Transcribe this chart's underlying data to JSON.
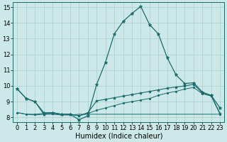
{
  "xlabel": "Humidex (Indice chaleur)",
  "xlim": [
    -0.5,
    23.5
  ],
  "ylim": [
    7.7,
    15.3
  ],
  "yticks": [
    8,
    9,
    10,
    11,
    12,
    13,
    14,
    15
  ],
  "xticks": [
    0,
    1,
    2,
    3,
    4,
    5,
    6,
    7,
    8,
    9,
    10,
    11,
    12,
    13,
    14,
    15,
    16,
    17,
    18,
    19,
    20,
    21,
    22,
    23
  ],
  "bg_color": "#cce8e8",
  "grid_color": "#aacece",
  "line_color": "#1a6b6b",
  "line1_x": [
    0,
    1,
    2,
    3,
    4,
    5,
    6,
    7,
    8,
    9,
    10,
    11,
    12,
    13,
    14,
    15,
    16,
    17,
    18,
    19,
    20,
    21,
    22,
    23
  ],
  "line1_y": [
    9.8,
    9.2,
    9.0,
    8.2,
    8.3,
    8.2,
    8.2,
    7.85,
    8.1,
    10.1,
    11.5,
    13.3,
    14.1,
    14.6,
    15.05,
    13.9,
    13.3,
    11.8,
    10.7,
    10.15,
    10.2,
    9.6,
    9.4,
    8.6
  ],
  "line2_x": [
    0,
    1,
    2,
    3,
    4,
    5,
    6,
    7,
    8,
    9,
    10,
    11,
    12,
    13,
    14,
    15,
    16,
    17,
    18,
    19,
    20,
    21,
    22,
    23
  ],
  "line2_y": [
    9.8,
    9.2,
    9.0,
    8.3,
    8.3,
    8.2,
    8.2,
    8.1,
    8.3,
    9.05,
    9.15,
    9.25,
    9.35,
    9.45,
    9.55,
    9.65,
    9.75,
    9.85,
    9.93,
    10.0,
    10.1,
    9.55,
    9.4,
    8.25
  ],
  "line3_x": [
    0,
    1,
    2,
    3,
    4,
    5,
    6,
    7,
    8,
    9,
    10,
    11,
    12,
    13,
    14,
    15,
    16,
    17,
    18,
    19,
    20,
    21,
    22,
    23
  ],
  "line3_y": [
    8.3,
    8.2,
    8.15,
    8.2,
    8.2,
    8.15,
    8.15,
    8.2,
    8.2,
    8.2,
    8.2,
    8.2,
    8.2,
    8.2,
    8.2,
    8.2,
    8.2,
    8.2,
    8.2,
    8.2,
    8.2,
    8.2,
    8.2,
    8.2
  ],
  "line4_x": [
    0,
    1,
    2,
    3,
    4,
    5,
    6,
    7,
    8,
    9,
    10,
    11,
    12,
    13,
    14,
    15,
    16,
    17,
    18,
    19,
    20,
    21,
    22,
    23
  ],
  "line4_y": [
    8.3,
    8.2,
    8.2,
    8.25,
    8.25,
    8.2,
    8.2,
    8.1,
    8.25,
    8.45,
    8.6,
    8.75,
    8.9,
    9.0,
    9.1,
    9.2,
    9.4,
    9.55,
    9.65,
    9.8,
    9.9,
    9.5,
    9.35,
    8.2
  ],
  "tick_fontsize": 6.0,
  "xlabel_fontsize": 7.0
}
